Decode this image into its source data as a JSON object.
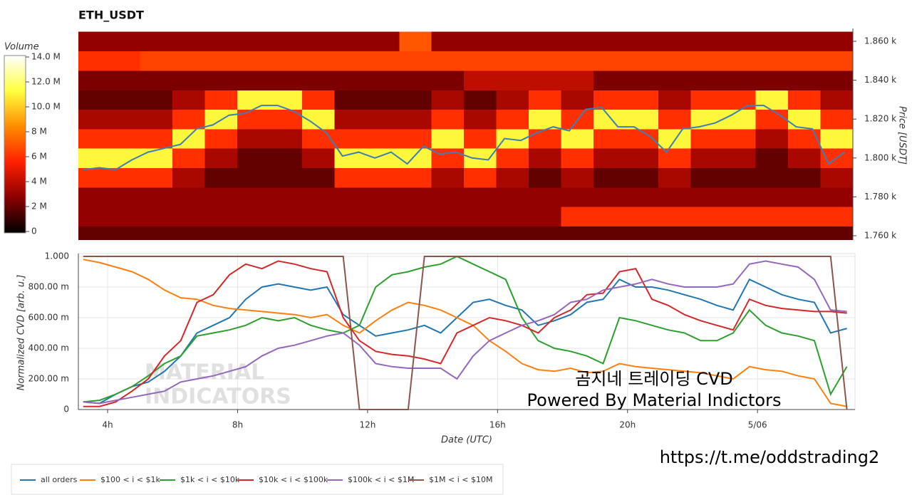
{
  "chart_data": [
    {
      "type": "heatmap",
      "title": "ETH_USDT",
      "y_label": "Price [USDT]",
      "xlim": [
        3.1,
        27.0
      ],
      "ylim": [
        1757.8,
        1866.6
      ],
      "yticks": [
        {
          "value": 1760,
          "label": "1.760 k"
        },
        {
          "value": 1780,
          "label": "1.780 k"
        },
        {
          "value": 1800,
          "label": "1.800 k"
        },
        {
          "value": 1820,
          "label": "1.820 k"
        },
        {
          "value": 1840,
          "label": "1.840 k"
        },
        {
          "value": 1860,
          "label": "1.860 k"
        }
      ],
      "x_bins": [
        3,
        4,
        5,
        6,
        7,
        8,
        9,
        10,
        11,
        12,
        13,
        14,
        15,
        16,
        17,
        18,
        19,
        20,
        21,
        22,
        23,
        24,
        25,
        26,
        27
      ],
      "y_bins": [
        1755,
        1765,
        1775,
        1785,
        1795,
        1805,
        1815,
        1825,
        1835,
        1845,
        1855,
        1865
      ],
      "z": [
        [
          2000000.0,
          2000000.0,
          2000000.0,
          2000000.0,
          2000000.0,
          2000000.0,
          2000000.0,
          2000000.0,
          2000000.0,
          2000000.0,
          2000000.0,
          2000000.0,
          2000000.0,
          2000000.0,
          2000000.0,
          2000000.0,
          2000000.0,
          2000000.0,
          2000000.0,
          2000000.0,
          2000000.0,
          2000000.0,
          2000000.0,
          2000000.0
        ],
        [
          3000000.0,
          3000000.0,
          3000000.0,
          3000000.0,
          3000000.0,
          3000000.0,
          3000000.0,
          3000000.0,
          3000000.0,
          3000000.0,
          3000000.0,
          3000000.0,
          3000000.0,
          3000000.0,
          3000000.0,
          6000000.0,
          6000000.0,
          6000000.0,
          6000000.0,
          6000000.0,
          6000000.0,
          6000000.0,
          6000000.0,
          6000000.0
        ],
        [
          3000000.0,
          3000000.0,
          3000000.0,
          3000000.0,
          3000000.0,
          3000000.0,
          3000000.0,
          3000000.0,
          3000000.0,
          3000000.0,
          3000000.0,
          3000000.0,
          3000000.0,
          3000000.0,
          3000000.0,
          3000000.0,
          3000000.0,
          3000000.0,
          3000000.0,
          3000000.0,
          3000000.0,
          3000000.0,
          3000000.0,
          3000000.0
        ],
        [
          6000000.0,
          6000000.0,
          6000000.0,
          3500000.0,
          2000000.0,
          2000000.0,
          2000000.0,
          2000000.0,
          6000000.0,
          6000000.0,
          6000000.0,
          3500000.0,
          6000000.0,
          3500000.0,
          2000000.0,
          3500000.0,
          2000000.0,
          2000000.0,
          3500000.0,
          2000000.0,
          2000000.0,
          2000000.0,
          2000000.0,
          3500000.0
        ],
        [
          11000000.0,
          11000000.0,
          11000000.0,
          6000000.0,
          3500000.0,
          2000000.0,
          2000000.0,
          3500000.0,
          11000000.0,
          11000000.0,
          11000000.0,
          6000000.0,
          11000000.0,
          6000000.0,
          3500000.0,
          6000000.0,
          3500000.0,
          3500000.0,
          6000000.0,
          3500000.0,
          3500000.0,
          2000000.0,
          3500000.0,
          6000000.0
        ],
        [
          6000000.0,
          6000000.0,
          6000000.0,
          11000000.0,
          6000000.0,
          3500000.0,
          3500000.0,
          6000000.0,
          6000000.0,
          6000000.0,
          6000000.0,
          11000000.0,
          6000000.0,
          11000000.0,
          6000000.0,
          11000000.0,
          6000000.0,
          6000000.0,
          11000000.0,
          6000000.0,
          6000000.0,
          3500000.0,
          6000000.0,
          11000000.0
        ],
        [
          3500000.0,
          3500000.0,
          3500000.0,
          6000000.0,
          11000000.0,
          6000000.0,
          6000000.0,
          11000000.0,
          3500000.0,
          3500000.0,
          3500000.0,
          6000000.0,
          3500000.0,
          6000000.0,
          11000000.0,
          6000000.0,
          11000000.0,
          11000000.0,
          6000000.0,
          11000000.0,
          11000000.0,
          6000000.0,
          11000000.0,
          6000000.0
        ],
        [
          2000000.0,
          2000000.0,
          2000000.0,
          3500000.0,
          6000000.0,
          11000000.0,
          11000000.0,
          6000000.0,
          2000000.0,
          2000000.0,
          2000000.0,
          3500000.0,
          2000000.0,
          3500000.0,
          6000000.0,
          3500000.0,
          6000000.0,
          6000000.0,
          3500000.0,
          6000000.0,
          6000000.0,
          11000000.0,
          6000000.0,
          3500000.0
        ],
        [
          2500000.0,
          2500000.0,
          2500000.0,
          2500000.0,
          2500000.0,
          2500000.0,
          2500000.0,
          2500000.0,
          2500000.0,
          2500000.0,
          2500000.0,
          2500000.0,
          4000000.0,
          4000000.0,
          4000000.0,
          4000000.0,
          2500000.0,
          2500000.0,
          2500000.0,
          2500000.0,
          2500000.0,
          2500000.0,
          2500000.0,
          2500000.0
        ],
        [
          6000000.0,
          6000000.0,
          6500000.0,
          6500000.0,
          6500000.0,
          6500000.0,
          6500000.0,
          6500000.0,
          6500000.0,
          6500000.0,
          6500000.0,
          6500000.0,
          6500000.0,
          6500000.0,
          6500000.0,
          6500000.0,
          6500000.0,
          6500000.0,
          6500000.0,
          6500000.0,
          6500000.0,
          6500000.0,
          6500000.0,
          6500000.0
        ],
        [
          3000000.0,
          3000000.0,
          3000000.0,
          3000000.0,
          3000000.0,
          3000000.0,
          3000000.0,
          3000000.0,
          3000000.0,
          3000000.0,
          7000000.0,
          3000000.0,
          3000000.0,
          3000000.0,
          3000000.0,
          3000000.0,
          3000000.0,
          3000000.0,
          3000000.0,
          3000000.0,
          3000000.0,
          3000000.0,
          3000000.0,
          3000000.0
        ]
      ],
      "colorscale": [
        "#000000",
        "#8b0000",
        "#ff2000",
        "#ff8c00",
        "#ffff40",
        "#ffffff"
      ],
      "colorbar": {
        "label": "Volume",
        "zlim": [
          0,
          14000000
        ],
        "ticks": [
          0,
          {
            "value": 2000000,
            "label": "2 M"
          },
          {
            "value": 4000000,
            "label": "4 M"
          },
          {
            "value": 6000000,
            "label": "6 M"
          },
          {
            "value": 8000000,
            "label": "8 M"
          },
          {
            "value": 10000000,
            "label": "10.0 M"
          },
          {
            "value": 12000000,
            "label": "12.0 M"
          },
          {
            "value": 14000000,
            "label": "14.0 M"
          }
        ]
      },
      "line": {
        "color": "#3b7fb6",
        "x": [
          3.25,
          3.75,
          4.25,
          4.75,
          5.25,
          5.75,
          6.25,
          6.75,
          7.25,
          7.75,
          8.25,
          8.75,
          9.25,
          9.75,
          10.25,
          10.75,
          11.25,
          11.75,
          12.25,
          12.75,
          13.25,
          13.75,
          14.25,
          14.75,
          15.25,
          15.75,
          16.25,
          16.75,
          17.25,
          17.75,
          18.25,
          18.75,
          19.25,
          19.75,
          20.25,
          20.75,
          21.25,
          21.75,
          22.25,
          22.75,
          23.25,
          23.75,
          24.25,
          24.75,
          25.25,
          25.75,
          26.25,
          26.75
        ],
        "values": [
          1794,
          1795,
          1794,
          1799,
          1803,
          1805,
          1807,
          1815,
          1817,
          1822,
          1823,
          1827,
          1827,
          1824,
          1819,
          1813,
          1801,
          1803,
          1800,
          1803,
          1797,
          1806,
          1802,
          1803,
          1800,
          1799,
          1810,
          1809,
          1813,
          1816,
          1814,
          1825,
          1826,
          1816,
          1816,
          1811,
          1803,
          1815,
          1816,
          1818,
          1822,
          1827,
          1827,
          1822,
          1816,
          1815,
          1797,
          1803
        ]
      }
    },
    {
      "type": "line",
      "x_label": "Date (UTC)",
      "y_label": "Normalized CVD [arb. u.]",
      "grid": true,
      "xlim": [
        3.1,
        27.0
      ],
      "ylim": [
        0,
        1.0
      ],
      "xticks": [
        {
          "value": 4,
          "label": "4h"
        },
        {
          "value": 8,
          "label": "8h"
        },
        {
          "value": 12,
          "label": "12h"
        },
        {
          "value": 16,
          "label": "16h"
        },
        {
          "value": 20,
          "label": "20h"
        },
        {
          "value": 24,
          "label": "5/06"
        }
      ],
      "yticks": [
        0,
        {
          "value": 0.2,
          "label": "200.00 m"
        },
        {
          "value": 0.4,
          "label": "400.00 m"
        },
        {
          "value": 0.6,
          "label": "600.00 m"
        },
        {
          "value": 0.8,
          "label": "800.00 m"
        },
        {
          "value": 1.0,
          "label": "1.000"
        }
      ],
      "x": [
        3.25,
        3.75,
        4.25,
        4.75,
        5.25,
        5.75,
        6.25,
        6.75,
        7.25,
        7.75,
        8.25,
        8.75,
        9.25,
        9.75,
        10.25,
        10.75,
        11.25,
        11.75,
        12.25,
        12.75,
        13.25,
        13.75,
        14.25,
        14.75,
        15.25,
        15.75,
        16.25,
        16.75,
        17.25,
        17.75,
        18.25,
        18.75,
        19.25,
        19.75,
        20.25,
        20.75,
        21.25,
        21.75,
        22.25,
        22.75,
        23.25,
        23.75,
        24.25,
        24.75,
        25.25,
        25.75,
        26.25,
        26.75
      ],
      "series": [
        {
          "name": "all orders",
          "color": "#1f77b4",
          "values": [
            0.05,
            0.04,
            0.1,
            0.15,
            0.18,
            0.25,
            0.35,
            0.5,
            0.55,
            0.6,
            0.72,
            0.8,
            0.82,
            0.8,
            0.78,
            0.8,
            0.62,
            0.55,
            0.48,
            0.5,
            0.52,
            0.55,
            0.5,
            0.6,
            0.7,
            0.72,
            0.68,
            0.65,
            0.55,
            0.58,
            0.62,
            0.7,
            0.72,
            0.85,
            0.8,
            0.8,
            0.78,
            0.75,
            0.72,
            0.68,
            0.65,
            0.85,
            0.8,
            0.75,
            0.72,
            0.7,
            0.5,
            0.53
          ]
        },
        {
          "name": "$100 < i < $1k",
          "color": "#ff7f0e",
          "values": [
            0.98,
            0.96,
            0.93,
            0.9,
            0.85,
            0.78,
            0.73,
            0.72,
            0.68,
            0.66,
            0.65,
            0.64,
            0.63,
            0.62,
            0.6,
            0.62,
            0.55,
            0.5,
            0.58,
            0.65,
            0.7,
            0.68,
            0.65,
            0.6,
            0.55,
            0.45,
            0.38,
            0.3,
            0.26,
            0.25,
            0.27,
            0.24,
            0.25,
            0.3,
            0.28,
            0.27,
            0.26,
            0.25,
            0.24,
            0.22,
            0.2,
            0.28,
            0.26,
            0.25,
            0.22,
            0.2,
            0.04,
            0.02
          ]
        },
        {
          "name": "$1k < i < $10k",
          "color": "#2ca02c",
          "values": [
            0.05,
            0.06,
            0.1,
            0.15,
            0.22,
            0.3,
            0.35,
            0.48,
            0.5,
            0.52,
            0.55,
            0.6,
            0.58,
            0.6,
            0.55,
            0.52,
            0.5,
            0.55,
            0.8,
            0.88,
            0.9,
            0.93,
            0.95,
            1.0,
            0.95,
            0.9,
            0.85,
            0.6,
            0.45,
            0.4,
            0.38,
            0.35,
            0.3,
            0.6,
            0.58,
            0.55,
            0.52,
            0.5,
            0.45,
            0.45,
            0.5,
            0.65,
            0.55,
            0.5,
            0.48,
            0.45,
            0.1,
            0.28
          ]
        },
        {
          "name": "$10k < i < $100k",
          "color": "#d62728",
          "values": [
            0.02,
            0.02,
            0.05,
            0.12,
            0.2,
            0.35,
            0.45,
            0.7,
            0.75,
            0.88,
            0.95,
            0.92,
            0.97,
            0.95,
            0.92,
            0.9,
            0.6,
            0.45,
            0.38,
            0.36,
            0.35,
            0.33,
            0.3,
            0.5,
            0.55,
            0.6,
            0.58,
            0.55,
            0.5,
            0.6,
            0.65,
            0.75,
            0.76,
            0.9,
            0.92,
            0.72,
            0.68,
            0.62,
            0.58,
            0.55,
            0.52,
            0.72,
            0.68,
            0.66,
            0.65,
            0.64,
            0.64,
            0.63
          ]
        },
        {
          "name": "$100k < i < $1M",
          "color": "#9467bd",
          "values": [
            0.05,
            0.04,
            0.06,
            0.08,
            0.1,
            0.12,
            0.18,
            0.2,
            0.22,
            0.25,
            0.28,
            0.35,
            0.4,
            0.42,
            0.45,
            0.48,
            0.5,
            0.42,
            0.3,
            0.28,
            0.27,
            0.27,
            0.27,
            0.2,
            0.35,
            0.45,
            0.5,
            0.55,
            0.58,
            0.62,
            0.7,
            0.72,
            0.78,
            0.8,
            0.82,
            0.85,
            0.82,
            0.8,
            0.8,
            0.8,
            0.82,
            0.95,
            0.97,
            0.95,
            0.93,
            0.85,
            0.65,
            0.64
          ]
        },
        {
          "name": "$1M < i < $10M",
          "color": "#8c564b",
          "values": [
            1,
            1,
            1,
            1,
            1,
            1,
            1,
            1,
            1,
            1,
            1,
            1,
            1,
            1,
            1,
            1,
            1,
            0,
            0,
            0,
            0,
            1,
            1,
            1,
            1,
            1,
            1,
            1,
            1,
            1,
            1,
            1,
            1,
            1,
            1,
            1,
            1,
            1,
            1,
            1,
            1,
            1,
            1,
            1,
            1,
            1,
            1,
            0
          ]
        }
      ],
      "annotations": [
        "곰지네 트레이딩 CVD",
        "Powered By Material Indictors"
      ],
      "watermark": [
        "MATERIAL",
        "INDICATORS"
      ]
    }
  ],
  "link": "https://t.me/oddstrading2"
}
